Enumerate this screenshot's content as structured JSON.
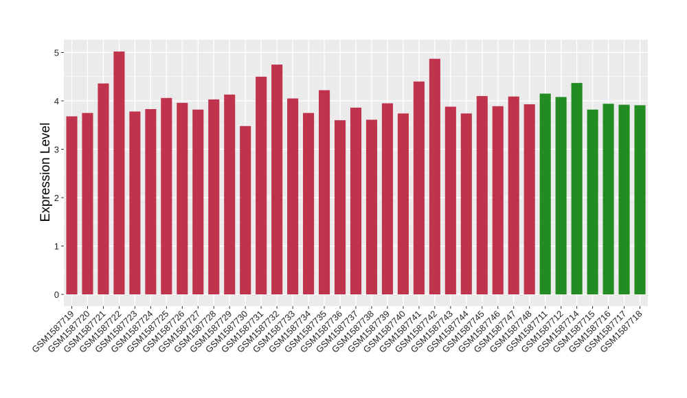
{
  "chart_data": {
    "type": "bar",
    "title": "",
    "xlabel": "",
    "ylabel": "Expression Level",
    "ylim": [
      0,
      5.2
    ],
    "yticks": [
      0,
      1,
      2,
      3,
      4,
      5
    ],
    "grid": true,
    "legend": "none",
    "categories": [
      "GSM1587719",
      "GSM1587720",
      "GSM1587721",
      "GSM1587722",
      "GSM1587723",
      "GSM1587724",
      "GSM1587725",
      "GSM1587726",
      "GSM1587727",
      "GSM1587728",
      "GSM1587729",
      "GSM1587730",
      "GSM1587731",
      "GSM1587732",
      "GSM1587733",
      "GSM1587734",
      "GSM1587735",
      "GSM1587736",
      "GSM1587737",
      "GSM1587738",
      "GSM1587739",
      "GSM1587740",
      "GSM1587741",
      "GSM1587742",
      "GSM1587743",
      "GSM1587744",
      "GSM1587745",
      "GSM1587746",
      "GSM1587747",
      "GSM1587748",
      "GSM1587711",
      "GSM1587712",
      "GSM1587714",
      "GSM1587715",
      "GSM1587716",
      "GSM1587717",
      "GSM1587718"
    ],
    "values": [
      3.68,
      3.75,
      4.36,
      5.02,
      3.78,
      3.83,
      4.06,
      3.96,
      3.82,
      4.03,
      4.13,
      3.48,
      4.5,
      4.75,
      4.05,
      3.75,
      4.22,
      3.6,
      3.86,
      3.61,
      3.95,
      3.74,
      4.4,
      4.87,
      3.88,
      3.74,
      4.1,
      3.89,
      4.09,
      3.93,
      4.15,
      4.08,
      4.37,
      3.82,
      3.94,
      3.92,
      3.91
    ],
    "groups": [
      "a",
      "a",
      "a",
      "a",
      "a",
      "a",
      "a",
      "a",
      "a",
      "a",
      "a",
      "a",
      "a",
      "a",
      "a",
      "a",
      "a",
      "a",
      "a",
      "a",
      "a",
      "a",
      "a",
      "a",
      "a",
      "a",
      "a",
      "a",
      "a",
      "a",
      "b",
      "b",
      "b",
      "b",
      "b",
      "b",
      "b"
    ],
    "colors": {
      "a": "#c0334d",
      "b": "#228b22"
    },
    "panel_background": "#ebebeb",
    "grid_color": "#ffffff"
  }
}
